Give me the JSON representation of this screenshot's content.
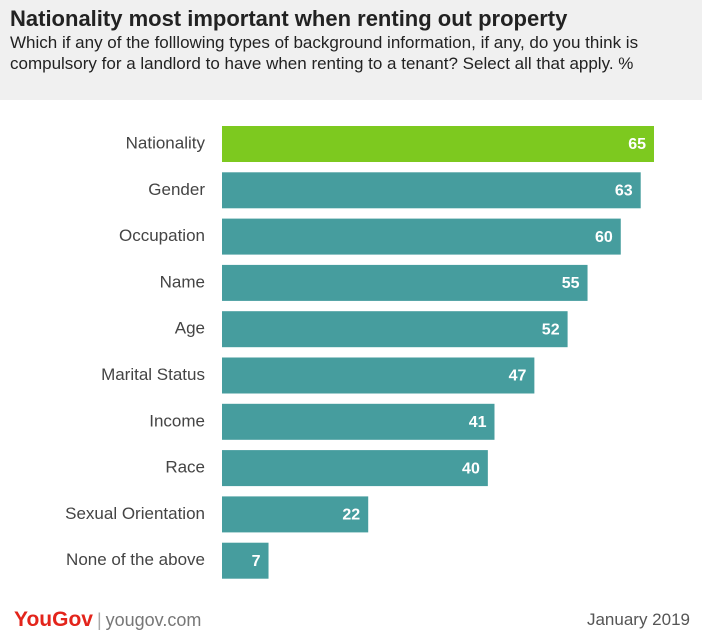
{
  "chart_data": {
    "type": "bar",
    "title": "Nationality most important when renting out property",
    "subtitle": "Which if any of the folllowing types of background information, if any, do you think is compulsory for a landlord to have when renting to a tenant? Select all that apply. %",
    "categories": [
      "Nationality",
      "Gender",
      "Occupation",
      "Name",
      "Age",
      "Marital Status",
      "Income",
      "Race",
      "Sexual Orientation",
      "None of the above"
    ],
    "values": [
      65,
      63,
      60,
      55,
      52,
      47,
      41,
      40,
      22,
      7
    ],
    "colors": [
      "#7dc91f",
      "#469d9e",
      "#469d9e",
      "#469d9e",
      "#469d9e",
      "#469d9e",
      "#469d9e",
      "#469d9e",
      "#469d9e",
      "#469d9e"
    ],
    "footer": {
      "brand": "YouGov",
      "site": "yougov.com",
      "date": "January 2019"
    }
  }
}
